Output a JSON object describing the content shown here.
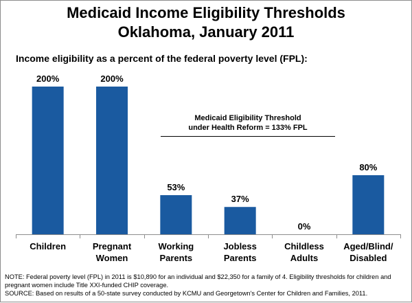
{
  "title_line1": "Medicaid Income Eligibility Thresholds",
  "title_line2": "Oklahoma, January 2011",
  "subtitle": "Income eligibility as a percent of the federal poverty level (FPL):",
  "chart_data": {
    "type": "bar",
    "categories": [
      [
        "Children"
      ],
      [
        "Pregnant",
        "Women"
      ],
      [
        "Working",
        "Parents"
      ],
      [
        "Jobless",
        "Parents"
      ],
      [
        "Childless",
        "Adults"
      ],
      [
        "Aged/Blind/",
        "Disabled"
      ]
    ],
    "values": [
      200,
      200,
      53,
      37,
      0,
      80
    ],
    "value_labels": [
      "200%",
      "200%",
      "53%",
      "37%",
      "0%",
      "80%"
    ],
    "bar_color": "#1a5aa0",
    "ylim": [
      0,
      200
    ],
    "reference": {
      "value": 133,
      "label_line1": "Medicaid Eligibility Threshold",
      "label_line2": "under Health Reform  = 133% FPL"
    }
  },
  "notes": {
    "line1": "NOTE: Federal poverty level (FPL) in 2011 is $10,890 for an individual and  $22,350 for a family of 4. Eligibility thresholds for children and",
    "line2": "pregnant women include Title XXI-funded CHIP coverage.",
    "line3": "SOURCE: Based on results of a 50-state survey conducted by KCMU and Georgetown's Center for Children and Families, 2011."
  }
}
